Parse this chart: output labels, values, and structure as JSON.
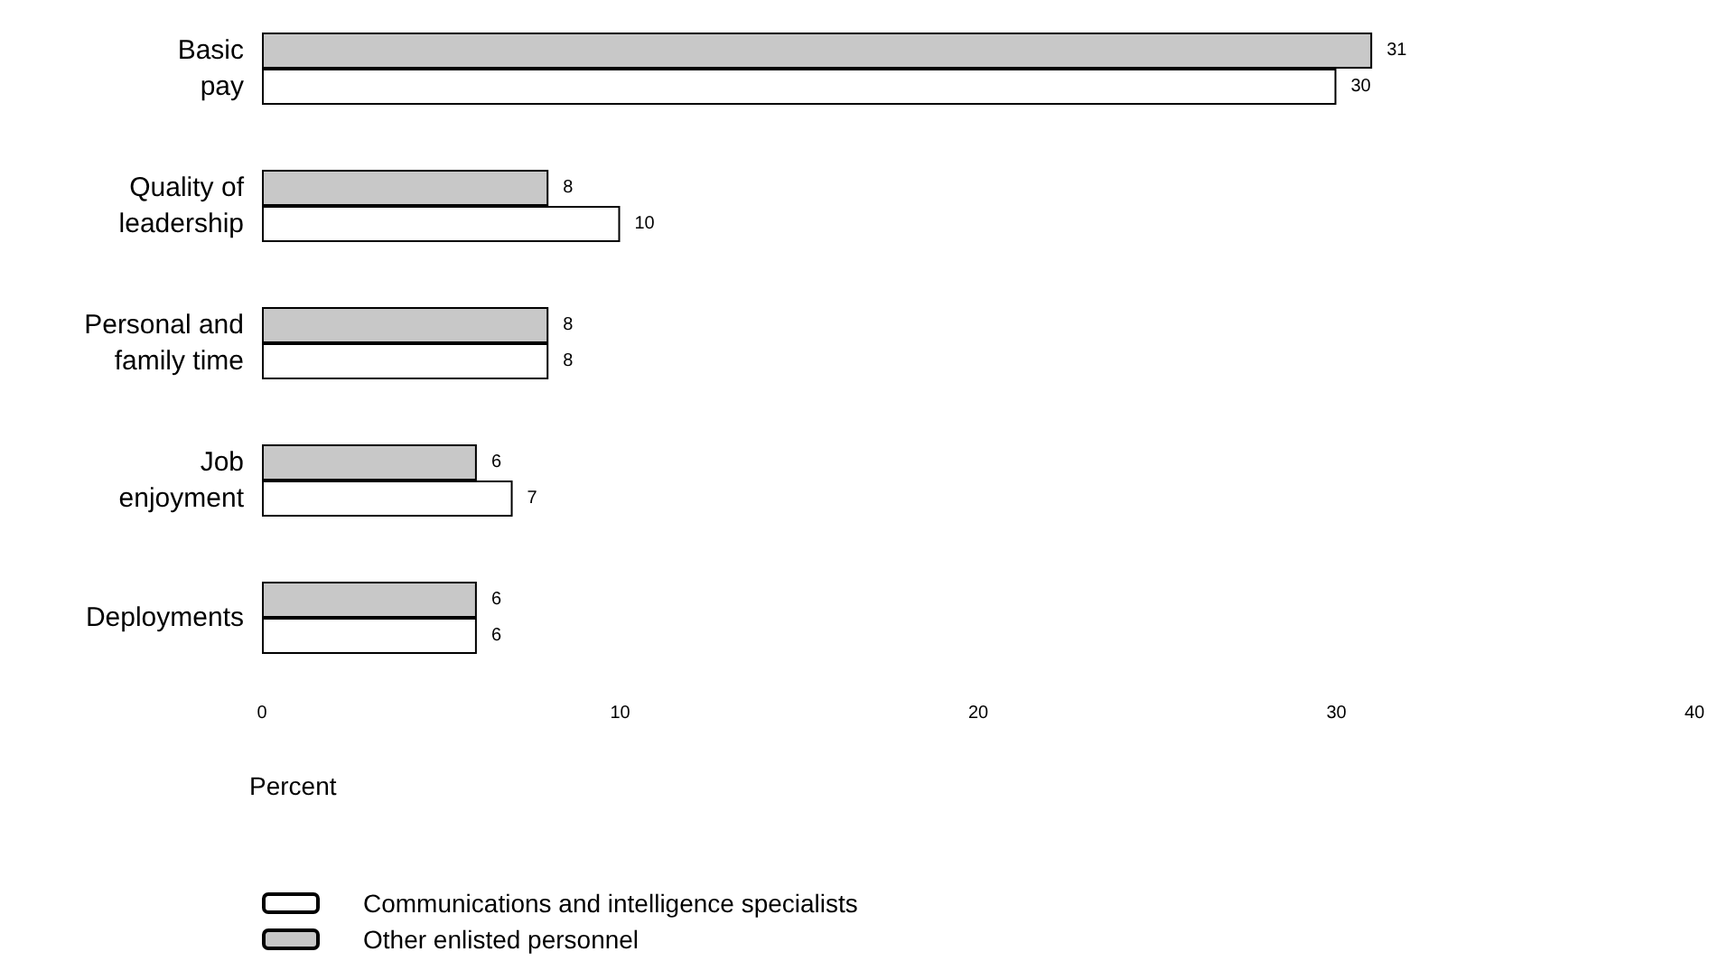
{
  "chart_data": {
    "type": "bar",
    "orientation": "horizontal",
    "categories": [
      "Basic\npay",
      "Quality of\nleadership",
      "Personal and\nfamily time",
      "Job\nenjoyment",
      "Deployments"
    ],
    "series": [
      {
        "name": "Other enlisted personnel",
        "color": "#c8c8c8",
        "values": [
          31,
          8,
          8,
          6,
          6
        ]
      },
      {
        "name": "Communications and intelligence specialists",
        "color": "#ffffff",
        "values": [
          30,
          10,
          8,
          7,
          6
        ]
      }
    ],
    "xlim": [
      0,
      40
    ],
    "xticks": [
      0,
      10,
      20,
      30,
      40
    ],
    "xlabel": "Percent",
    "data_labels": true,
    "grid": false,
    "legend": "bottom left"
  }
}
